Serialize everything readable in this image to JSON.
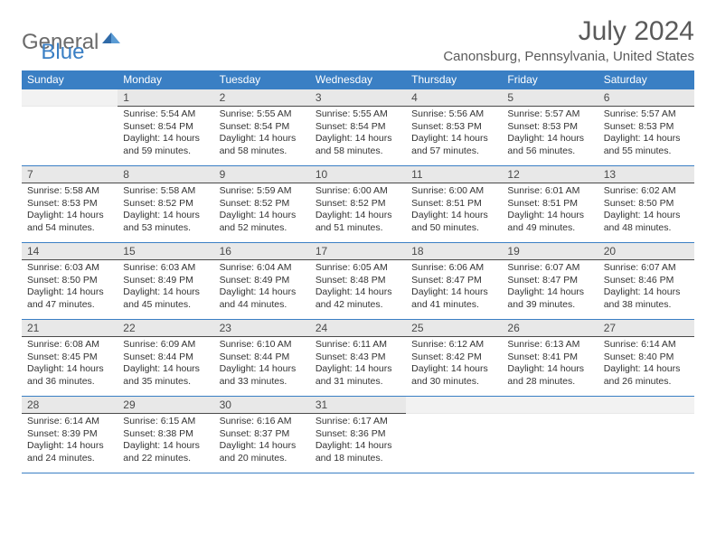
{
  "logo": {
    "part1": "General",
    "part2": "Blue"
  },
  "title": {
    "month": "July 2024",
    "location": "Canonsburg, Pennsylvania, United States"
  },
  "colors": {
    "header_bg": "#3a7fc4",
    "daynum_bg": "#e8e8e8",
    "daynum_border": "#4a4a4a",
    "week_divider": "#3a7fc4",
    "text": "#333333",
    "title_text": "#5a5a5a"
  },
  "dow": [
    "Sunday",
    "Monday",
    "Tuesday",
    "Wednesday",
    "Thursday",
    "Friday",
    "Saturday"
  ],
  "weeks": [
    [
      null,
      {
        "n": "1",
        "sr": "5:54 AM",
        "ss": "8:54 PM",
        "dl": "14 hours and 59 minutes."
      },
      {
        "n": "2",
        "sr": "5:55 AM",
        "ss": "8:54 PM",
        "dl": "14 hours and 58 minutes."
      },
      {
        "n": "3",
        "sr": "5:55 AM",
        "ss": "8:54 PM",
        "dl": "14 hours and 58 minutes."
      },
      {
        "n": "4",
        "sr": "5:56 AM",
        "ss": "8:53 PM",
        "dl": "14 hours and 57 minutes."
      },
      {
        "n": "5",
        "sr": "5:57 AM",
        "ss": "8:53 PM",
        "dl": "14 hours and 56 minutes."
      },
      {
        "n": "6",
        "sr": "5:57 AM",
        "ss": "8:53 PM",
        "dl": "14 hours and 55 minutes."
      }
    ],
    [
      {
        "n": "7",
        "sr": "5:58 AM",
        "ss": "8:53 PM",
        "dl": "14 hours and 54 minutes."
      },
      {
        "n": "8",
        "sr": "5:58 AM",
        "ss": "8:52 PM",
        "dl": "14 hours and 53 minutes."
      },
      {
        "n": "9",
        "sr": "5:59 AM",
        "ss": "8:52 PM",
        "dl": "14 hours and 52 minutes."
      },
      {
        "n": "10",
        "sr": "6:00 AM",
        "ss": "8:52 PM",
        "dl": "14 hours and 51 minutes."
      },
      {
        "n": "11",
        "sr": "6:00 AM",
        "ss": "8:51 PM",
        "dl": "14 hours and 50 minutes."
      },
      {
        "n": "12",
        "sr": "6:01 AM",
        "ss": "8:51 PM",
        "dl": "14 hours and 49 minutes."
      },
      {
        "n": "13",
        "sr": "6:02 AM",
        "ss": "8:50 PM",
        "dl": "14 hours and 48 minutes."
      }
    ],
    [
      {
        "n": "14",
        "sr": "6:03 AM",
        "ss": "8:50 PM",
        "dl": "14 hours and 47 minutes."
      },
      {
        "n": "15",
        "sr": "6:03 AM",
        "ss": "8:49 PM",
        "dl": "14 hours and 45 minutes."
      },
      {
        "n": "16",
        "sr": "6:04 AM",
        "ss": "8:49 PM",
        "dl": "14 hours and 44 minutes."
      },
      {
        "n": "17",
        "sr": "6:05 AM",
        "ss": "8:48 PM",
        "dl": "14 hours and 42 minutes."
      },
      {
        "n": "18",
        "sr": "6:06 AM",
        "ss": "8:47 PM",
        "dl": "14 hours and 41 minutes."
      },
      {
        "n": "19",
        "sr": "6:07 AM",
        "ss": "8:47 PM",
        "dl": "14 hours and 39 minutes."
      },
      {
        "n": "20",
        "sr": "6:07 AM",
        "ss": "8:46 PM",
        "dl": "14 hours and 38 minutes."
      }
    ],
    [
      {
        "n": "21",
        "sr": "6:08 AM",
        "ss": "8:45 PM",
        "dl": "14 hours and 36 minutes."
      },
      {
        "n": "22",
        "sr": "6:09 AM",
        "ss": "8:44 PM",
        "dl": "14 hours and 35 minutes."
      },
      {
        "n": "23",
        "sr": "6:10 AM",
        "ss": "8:44 PM",
        "dl": "14 hours and 33 minutes."
      },
      {
        "n": "24",
        "sr": "6:11 AM",
        "ss": "8:43 PM",
        "dl": "14 hours and 31 minutes."
      },
      {
        "n": "25",
        "sr": "6:12 AM",
        "ss": "8:42 PM",
        "dl": "14 hours and 30 minutes."
      },
      {
        "n": "26",
        "sr": "6:13 AM",
        "ss": "8:41 PM",
        "dl": "14 hours and 28 minutes."
      },
      {
        "n": "27",
        "sr": "6:14 AM",
        "ss": "8:40 PM",
        "dl": "14 hours and 26 minutes."
      }
    ],
    [
      {
        "n": "28",
        "sr": "6:14 AM",
        "ss": "8:39 PM",
        "dl": "14 hours and 24 minutes."
      },
      {
        "n": "29",
        "sr": "6:15 AM",
        "ss": "8:38 PM",
        "dl": "14 hours and 22 minutes."
      },
      {
        "n": "30",
        "sr": "6:16 AM",
        "ss": "8:37 PM",
        "dl": "14 hours and 20 minutes."
      },
      {
        "n": "31",
        "sr": "6:17 AM",
        "ss": "8:36 PM",
        "dl": "14 hours and 18 minutes."
      },
      null,
      null,
      null
    ]
  ],
  "labels": {
    "sunrise": "Sunrise:",
    "sunset": "Sunset:",
    "daylight": "Daylight:"
  }
}
